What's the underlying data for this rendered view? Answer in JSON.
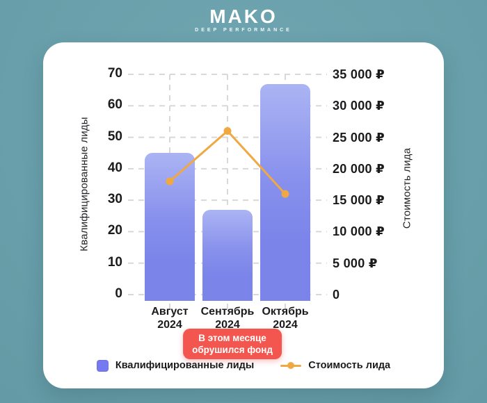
{
  "brand": {
    "logo": "MAKO",
    "tagline": "DEEP PERFORMANCE"
  },
  "colors": {
    "background": "#69a0ab",
    "card": "#ffffff",
    "bar_gradient_top": "#abb4f3",
    "bar_gradient_bottom": "#7a84e9",
    "legend_square": "#7679ef",
    "line": "#f0a843",
    "badge": "#f2564f",
    "text": "#1b1b1d",
    "grid": "#d8d8d8"
  },
  "chart_data": {
    "type": "bar+line",
    "categories": [
      "Август 2024",
      "Сентябрь 2024",
      "Октябрь 2024"
    ],
    "series": [
      {
        "name": "Квалифицированные лиды",
        "type": "bar",
        "axis": "left",
        "color": "#7a84e9",
        "values": [
          45,
          27,
          67
        ]
      },
      {
        "name": "Стоимость лида",
        "type": "line",
        "axis": "right",
        "color": "#f0a843",
        "values": [
          18000,
          26000,
          16000
        ]
      }
    ],
    "left_axis": {
      "label": "Квалифицированные лиды",
      "min": 0,
      "max": 70,
      "tick_step": 10,
      "ticks": [
        "0",
        "10",
        "20",
        "30",
        "40",
        "50",
        "60",
        "70"
      ]
    },
    "right_axis": {
      "label": "Стоимость лида",
      "min": 0,
      "max": 35000,
      "tick_step": 5000,
      "ticks": [
        "0",
        "5 000 ₽",
        "10 000 ₽",
        "15 000 ₽",
        "20 000 ₽",
        "25 000 ₽",
        "30 000 ₽",
        "35 000 ₽"
      ]
    },
    "grid": "dashed",
    "legend_position": "bottom",
    "title": "",
    "annotation": {
      "line1": "В этом месяце",
      "line2": "обрушился фонд",
      "category": "Сентябрь 2024"
    }
  },
  "legend": [
    {
      "label": "Квалифицированные лиды",
      "marker": "bar-square"
    },
    {
      "label": "Стоимость лида",
      "marker": "line-dot"
    }
  ]
}
